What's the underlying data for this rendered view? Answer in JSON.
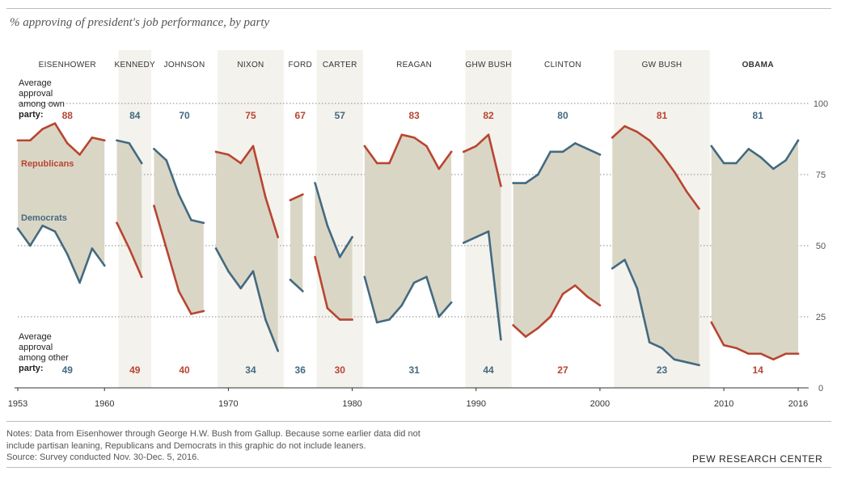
{
  "title": "% approving of president's job performance, by party",
  "chart_data": {
    "type": "area",
    "ylim": [
      0,
      100
    ],
    "yticks": [
      "0",
      "25",
      "50",
      "75",
      "100"
    ],
    "xlim": [
      1953,
      2016
    ],
    "xticks": [
      "1953",
      "1960",
      "1970",
      "1980",
      "1990",
      "2000",
      "2010",
      "2016"
    ],
    "grid": true,
    "series": [
      {
        "name": "Republicans",
        "color": "#b84531"
      },
      {
        "name": "Democrats",
        "color": "#436a80"
      }
    ],
    "own_label": [
      "Average",
      "approval",
      "among own",
      "party:"
    ],
    "other_label": [
      "Average",
      "approval",
      "among other",
      "party:"
    ],
    "colors": {
      "rep": "#b84531",
      "dem": "#436a80",
      "fill": "#dad6c6",
      "band": "#f4f2ed"
    },
    "presidents": [
      {
        "name": "EISENHOWER",
        "start": 1953,
        "end": 1961,
        "party": "R",
        "own": "88",
        "other": "49",
        "rep": [
          [
            1953,
            87
          ],
          [
            1954,
            87
          ],
          [
            1955,
            91
          ],
          [
            1956,
            93
          ],
          [
            1957,
            86
          ],
          [
            1958,
            82
          ],
          [
            1959,
            88
          ],
          [
            1960,
            87
          ]
        ],
        "dem": [
          [
            1953,
            56
          ],
          [
            1954,
            50
          ],
          [
            1955,
            57
          ],
          [
            1956,
            55
          ],
          [
            1957,
            47
          ],
          [
            1958,
            37
          ],
          [
            1959,
            49
          ],
          [
            1960,
            43
          ]
        ]
      },
      {
        "name": "KENNEDY",
        "start": 1961,
        "end": 1963.9,
        "party": "D",
        "own": "84",
        "other": "49",
        "rep": [
          [
            1961,
            58
          ],
          [
            1962,
            49
          ],
          [
            1963,
            39
          ]
        ],
        "dem": [
          [
            1961,
            87
          ],
          [
            1962,
            86
          ],
          [
            1963,
            79
          ]
        ]
      },
      {
        "name": "JOHNSON",
        "start": 1963.9,
        "end": 1969,
        "party": "D",
        "own": "70",
        "other": "40",
        "rep": [
          [
            1964,
            64
          ],
          [
            1965,
            49
          ],
          [
            1966,
            34
          ],
          [
            1967,
            26
          ],
          [
            1968,
            27
          ]
        ],
        "dem": [
          [
            1964,
            84
          ],
          [
            1965,
            80
          ],
          [
            1966,
            68
          ],
          [
            1967,
            59
          ],
          [
            1968,
            58
          ]
        ]
      },
      {
        "name": "NIXON",
        "start": 1969,
        "end": 1974.6,
        "party": "R",
        "own": "75",
        "other": "34",
        "rep": [
          [
            1969,
            83
          ],
          [
            1970,
            82
          ],
          [
            1971,
            79
          ],
          [
            1972,
            85
          ],
          [
            1973,
            67
          ],
          [
            1974,
            53
          ]
        ],
        "dem": [
          [
            1969,
            49
          ],
          [
            1970,
            41
          ],
          [
            1971,
            35
          ],
          [
            1972,
            41
          ],
          [
            1973,
            24
          ],
          [
            1974,
            13
          ]
        ]
      },
      {
        "name": "FORD",
        "start": 1974.6,
        "end": 1977,
        "party": "R",
        "own": "67",
        "other": "36",
        "rep": [
          [
            1975,
            66
          ],
          [
            1976,
            68
          ]
        ],
        "dem": [
          [
            1975,
            38
          ],
          [
            1976,
            34
          ]
        ]
      },
      {
        "name": "CARTER",
        "start": 1977,
        "end": 1981,
        "party": "D",
        "own": "57",
        "other": "30",
        "rep": [
          [
            1977,
            46
          ],
          [
            1978,
            28
          ],
          [
            1979,
            24
          ],
          [
            1980,
            24
          ]
        ],
        "dem": [
          [
            1977,
            72
          ],
          [
            1978,
            57
          ],
          [
            1979,
            46
          ],
          [
            1980,
            53
          ]
        ]
      },
      {
        "name": "REAGAN",
        "start": 1981,
        "end": 1989,
        "party": "R",
        "own": "83",
        "other": "31",
        "rep": [
          [
            1981,
            85
          ],
          [
            1982,
            79
          ],
          [
            1983,
            79
          ],
          [
            1984,
            89
          ],
          [
            1985,
            88
          ],
          [
            1986,
            85
          ],
          [
            1987,
            77
          ],
          [
            1988,
            83
          ]
        ],
        "dem": [
          [
            1981,
            39
          ],
          [
            1982,
            23
          ],
          [
            1983,
            24
          ],
          [
            1984,
            29
          ],
          [
            1985,
            37
          ],
          [
            1986,
            39
          ],
          [
            1987,
            25
          ],
          [
            1988,
            30
          ]
        ]
      },
      {
        "name": "GHW BUSH",
        "start": 1989,
        "end": 1993,
        "party": "R",
        "own": "82",
        "other": "44",
        "rep": [
          [
            1989,
            83
          ],
          [
            1990,
            85
          ],
          [
            1991,
            89
          ],
          [
            1992,
            71
          ]
        ],
        "dem": [
          [
            1989,
            51
          ],
          [
            1990,
            53
          ],
          [
            1991,
            55
          ],
          [
            1992,
            17
          ]
        ]
      },
      {
        "name": "CLINTON",
        "start": 1993,
        "end": 2001,
        "party": "D",
        "own": "80",
        "other": "27",
        "rep": [
          [
            1993,
            22
          ],
          [
            1994,
            18
          ],
          [
            1995,
            21
          ],
          [
            1996,
            25
          ],
          [
            1997,
            33
          ],
          [
            1998,
            36
          ],
          [
            1999,
            32
          ],
          [
            2000,
            29
          ]
        ],
        "dem": [
          [
            1993,
            72
          ],
          [
            1994,
            72
          ],
          [
            1995,
            75
          ],
          [
            1996,
            83
          ],
          [
            1997,
            83
          ],
          [
            1998,
            86
          ],
          [
            1999,
            84
          ],
          [
            2000,
            82
          ]
        ]
      },
      {
        "name": "GW BUSH",
        "start": 2001,
        "end": 2009,
        "party": "R",
        "own": "81",
        "other": "23",
        "rep": [
          [
            2001,
            88
          ],
          [
            2002,
            92
          ],
          [
            2003,
            90
          ],
          [
            2004,
            87
          ],
          [
            2005,
            82
          ],
          [
            2006,
            76
          ],
          [
            2007,
            69
          ],
          [
            2008,
            63
          ]
        ],
        "dem": [
          [
            2001,
            42
          ],
          [
            2002,
            45
          ],
          [
            2003,
            35
          ],
          [
            2004,
            16
          ],
          [
            2005,
            14
          ],
          [
            2006,
            10
          ],
          [
            2007,
            9
          ],
          [
            2008,
            8
          ]
        ]
      },
      {
        "name": "OBAMA",
        "start": 2009,
        "end": 2016.5,
        "party": "D",
        "own": "81",
        "other": "14",
        "rep": [
          [
            2009,
            23
          ],
          [
            2010,
            15
          ],
          [
            2011,
            14
          ],
          [
            2012,
            12
          ],
          [
            2013,
            12
          ],
          [
            2014,
            10
          ],
          [
            2015,
            12
          ],
          [
            2016,
            12
          ]
        ],
        "dem": [
          [
            2009,
            85
          ],
          [
            2010,
            79
          ],
          [
            2011,
            79
          ],
          [
            2012,
            84
          ],
          [
            2013,
            81
          ],
          [
            2014,
            77
          ],
          [
            2015,
            80
          ],
          [
            2016,
            87
          ]
        ]
      }
    ]
  },
  "notes": [
    "Notes: Data from Eisenhower through George H.W. Bush from Gallup. Because some earlier data did not",
    "include partisan leaning, Republicans and Democrats in this graphic do not include leaners.",
    "Source: Survey conducted Nov. 30-Dec. 5, 2016."
  ],
  "source_brand": "PEW RESEARCH CENTER"
}
